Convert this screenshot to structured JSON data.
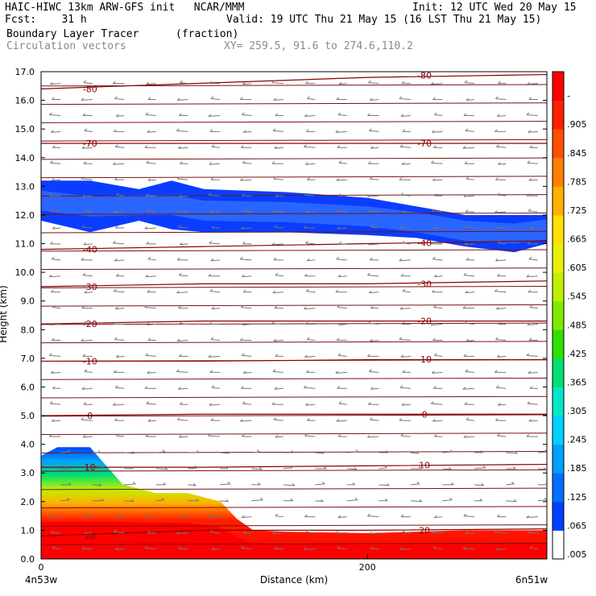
{
  "header": {
    "line1_left": "HAIC-HIWC 13km ARW-GFS init   NCAR/MMM",
    "line1_right": "Init: 12 UTC Wed 20 May 15",
    "line2_left": "Fcst:    31 h",
    "line2_right": "Valid: 19 UTC Thu 21 May 15 (16 LST Thu 21 May 15)",
    "line3_field": "Boundary Layer Tracer",
    "line3_units": "(fraction)",
    "line4_field": "Circulation vectors",
    "line4_xy": "XY= 259.5, 91.6 to 274.6,110.2"
  },
  "chart_data": {
    "type": "heatmap",
    "xlabel": "Distance (km)",
    "ylabel": "Height (km)",
    "xlim": [
      0,
      310
    ],
    "ylim": [
      0,
      17
    ],
    "x_ticks": [
      "0",
      "200"
    ],
    "x_tick_values": [
      0,
      200
    ],
    "x_end_labels": {
      "left": "4n53w",
      "right": "6n51w"
    },
    "y_ticks": [
      "0.0",
      "1.0",
      "2.0",
      "3.0",
      "4.0",
      "5.0",
      "6.0",
      "7.0",
      "8.0",
      "9.0",
      "10.0",
      "11.0",
      "12.0",
      "13.0",
      "14.0",
      "15.0",
      "16.0",
      "17.0"
    ],
    "colorbar_labels": [
      ".005",
      ".065",
      ".125",
      ".185",
      ".245",
      ".305",
      ".365",
      ".425",
      ".485",
      ".545",
      ".605",
      ".665",
      ".725",
      ".785",
      ".845",
      ".905",
      "-"
    ],
    "colorbar_colors": [
      "#ffffff",
      "#0040ff",
      "#0070ff",
      "#00a0ff",
      "#00d0ff",
      "#00e8c8",
      "#00e070",
      "#30e000",
      "#80ea00",
      "#c0f000",
      "#e8f000",
      "#ffe000",
      "#ffb000",
      "#ff8000",
      "#ff5000",
      "#ff2000",
      "#ff0000"
    ],
    "temperature_contours": [
      {
        "label": "-80",
        "y": [
          16.4,
          16.6,
          16.8,
          16.9
        ]
      },
      {
        "label": "-70",
        "y": [
          14.5,
          14.5,
          14.5,
          14.5
        ]
      },
      {
        "label": "-40",
        "y": [
          10.8,
          10.9,
          11.0,
          11.1
        ]
      },
      {
        "label": "-30",
        "y": [
          9.5,
          9.6,
          9.6,
          9.7
        ]
      },
      {
        "label": "-20",
        "y": [
          8.2,
          8.3,
          8.3,
          8.3
        ]
      },
      {
        "label": "-10",
        "y": [
          6.9,
          6.9,
          6.95,
          6.95
        ]
      },
      {
        "label": "0",
        "y": [
          5.0,
          5.05,
          5.05,
          5.05
        ]
      },
      {
        "label": "10",
        "y": [
          3.2,
          3.2,
          3.25,
          3.3
        ]
      },
      {
        "label": "20",
        "y": [
          0.8,
          1.0,
          1.0,
          1.05
        ]
      }
    ],
    "contour_x": [
      0,
      100,
      200,
      310
    ],
    "upper_tracer_layer": {
      "x": [
        0,
        30,
        60,
        80,
        100,
        150,
        200,
        230,
        260,
        290,
        310
      ],
      "top": [
        13.2,
        13.2,
        12.9,
        13.2,
        12.9,
        12.8,
        12.6,
        12.3,
        12.0,
        12.0,
        12.0
      ],
      "bottom": [
        11.8,
        11.4,
        11.8,
        11.5,
        11.4,
        11.4,
        11.3,
        11.2,
        10.9,
        10.7,
        11.0
      ]
    },
    "lower_tracer_layer": {
      "x": [
        0,
        10,
        30,
        50,
        70,
        90,
        110,
        120,
        130,
        150,
        200,
        260,
        310
      ],
      "top": [
        3.6,
        3.9,
        3.9,
        2.6,
        2.3,
        2.3,
        2.0,
        1.4,
        1.0,
        0.95,
        0.9,
        1.0,
        1.0
      ]
    }
  }
}
